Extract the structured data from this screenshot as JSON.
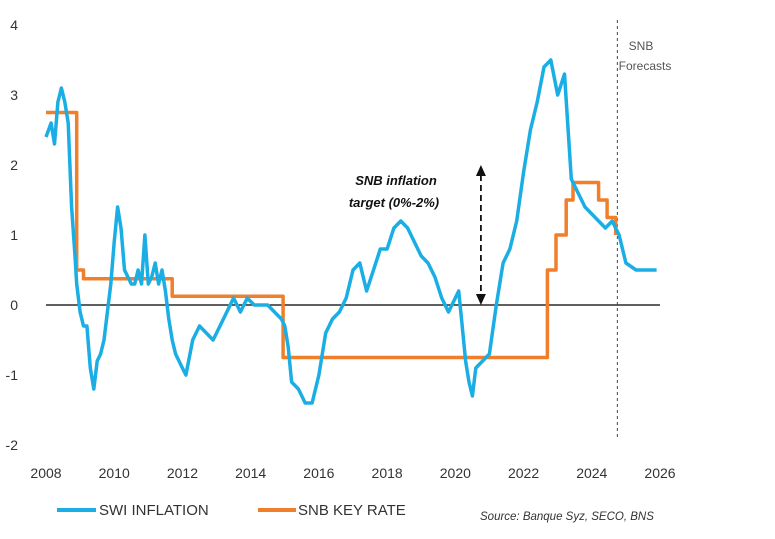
{
  "chart_data": {
    "type": "line",
    "title": "",
    "xlabel": "",
    "ylabel": "",
    "xlim": [
      2008,
      2026
    ],
    "ylim": [
      -2,
      4
    ],
    "x_ticks": [
      "2008",
      "2010",
      "2012",
      "2014",
      "2016",
      "2018",
      "2020",
      "2022",
      "2024",
      "2026"
    ],
    "y_ticks": [
      "4",
      "3",
      "2",
      "1",
      "0",
      "-1",
      "-2"
    ],
    "grid": false,
    "legend_position": "bottom-left",
    "series": [
      {
        "name": "SWI INFLATION",
        "color": "#1aaee5",
        "x": [
          2008.0,
          2008.15,
          2008.25,
          2008.35,
          2008.45,
          2008.55,
          2008.65,
          2008.75,
          2008.85,
          2008.9,
          2009.0,
          2009.1,
          2009.2,
          2009.3,
          2009.4,
          2009.5,
          2009.6,
          2009.7,
          2009.8,
          2009.9,
          2010.0,
          2010.1,
          2010.2,
          2010.3,
          2010.4,
          2010.5,
          2010.6,
          2010.7,
          2010.8,
          2010.9,
          2011.0,
          2011.1,
          2011.2,
          2011.3,
          2011.4,
          2011.5,
          2011.6,
          2011.7,
          2011.8,
          2011.9,
          2012.0,
          2012.1,
          2012.3,
          2012.5,
          2012.7,
          2012.9,
          2013.1,
          2013.3,
          2013.5,
          2013.7,
          2013.9,
          2014.1,
          2014.3,
          2014.5,
          2014.7,
          2014.9,
          2015.0,
          2015.1,
          2015.2,
          2015.4,
          2015.6,
          2015.8,
          2016.0,
          2016.2,
          2016.4,
          2016.6,
          2016.8,
          2017.0,
          2017.2,
          2017.4,
          2017.6,
          2017.8,
          2018.0,
          2018.2,
          2018.4,
          2018.6,
          2018.8,
          2019.0,
          2019.2,
          2019.4,
          2019.6,
          2019.8,
          2020.0,
          2020.1,
          2020.2,
          2020.3,
          2020.4,
          2020.5,
          2020.6,
          2020.8,
          2021.0,
          2021.2,
          2021.4,
          2021.6,
          2021.8,
          2022.0,
          2022.2,
          2022.4,
          2022.6,
          2022.8,
          2023.0,
          2023.2,
          2023.4,
          2023.6,
          2023.8,
          2024.0,
          2024.2,
          2024.4,
          2024.6,
          2024.8,
          2025.0,
          2025.3,
          2025.6,
          2025.9
        ],
        "values": [
          2.4,
          2.6,
          2.3,
          2.9,
          3.1,
          2.9,
          2.6,
          1.4,
          0.7,
          0.3,
          -0.1,
          -0.3,
          -0.3,
          -0.9,
          -1.2,
          -0.8,
          -0.7,
          -0.5,
          -0.1,
          0.3,
          0.9,
          1.4,
          1.1,
          0.5,
          0.4,
          0.3,
          0.3,
          0.5,
          0.3,
          1.0,
          0.3,
          0.4,
          0.6,
          0.3,
          0.5,
          0.2,
          -0.2,
          -0.5,
          -0.7,
          -0.8,
          -0.9,
          -1.0,
          -0.5,
          -0.3,
          -0.4,
          -0.5,
          -0.3,
          -0.1,
          0.1,
          -0.1,
          0.1,
          0.0,
          0.0,
          0.0,
          -0.1,
          -0.2,
          -0.3,
          -0.6,
          -1.1,
          -1.2,
          -1.4,
          -1.4,
          -1.0,
          -0.4,
          -0.2,
          -0.1,
          0.1,
          0.5,
          0.6,
          0.2,
          0.5,
          0.8,
          0.8,
          1.1,
          1.2,
          1.1,
          0.9,
          0.7,
          0.6,
          0.4,
          0.1,
          -0.1,
          0.1,
          0.2,
          -0.3,
          -0.8,
          -1.1,
          -1.3,
          -0.9,
          -0.8,
          -0.7,
          0.0,
          0.6,
          0.8,
          1.2,
          1.9,
          2.5,
          2.9,
          3.4,
          3.5,
          3.0,
          3.3,
          1.8,
          1.6,
          1.4,
          1.3,
          1.2,
          1.1,
          1.2,
          1.0,
          0.6,
          0.5,
          0.5,
          0.5
        ]
      },
      {
        "name": "SNB KEY RATE",
        "color": "#f07f2c",
        "step": true,
        "x": [
          2008.0,
          2008.8,
          2008.9,
          2009.1,
          2011.7,
          2014.95,
          2022.45,
          2022.7,
          2022.95,
          2023.25,
          2023.45,
          2024.2,
          2024.45,
          2024.7
        ],
        "values": [
          2.75,
          2.75,
          0.5,
          0.375,
          0.125,
          -0.75,
          -0.75,
          0.5,
          1.0,
          1.5,
          1.75,
          1.5,
          1.25,
          1.0
        ]
      }
    ],
    "forecast_line_x": 2024.75,
    "forecast_label": [
      "SNB",
      "Forecasts"
    ],
    "annotation": {
      "lines": [
        "SNB inflation",
        "target (0%-2%)"
      ],
      "arrow_x": 2020.75,
      "range": [
        0,
        2
      ]
    },
    "source": "Source: Banque Syz, SECO, BNS"
  }
}
